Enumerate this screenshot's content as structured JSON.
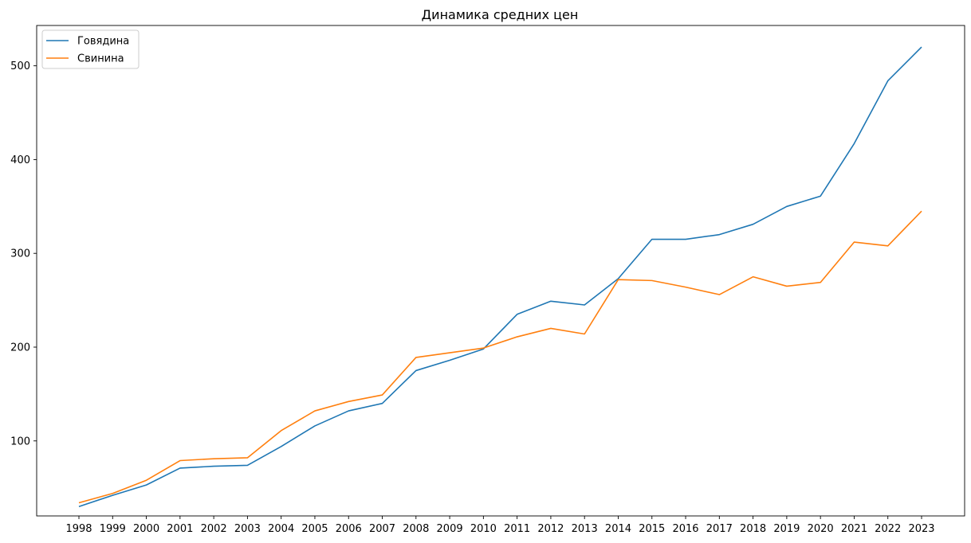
{
  "chart_data": {
    "type": "line",
    "title": "Динамика средних цен",
    "xlabel": "",
    "ylabel": "",
    "grid": false,
    "legend_position": "top-left",
    "x": [
      "1998",
      "1999",
      "2000",
      "2001",
      "2002",
      "2003",
      "2004",
      "2005",
      "2006",
      "2007",
      "2008",
      "2009",
      "2010",
      "2011",
      "2012",
      "2013",
      "2014",
      "2015",
      "2016",
      "2017",
      "2018",
      "2019",
      "2020",
      "2021",
      "2022",
      "2023"
    ],
    "ylim": [
      20,
      543
    ],
    "yticks": [
      100,
      200,
      300,
      400,
      500
    ],
    "series": [
      {
        "name": "Говядина",
        "color": "#1f77b4",
        "values": [
          30,
          42,
          53,
          71,
          73,
          74,
          94,
          116,
          132,
          140,
          175,
          186,
          198,
          235,
          249,
          245,
          273,
          315,
          315,
          320,
          331,
          350,
          361,
          417,
          484,
          520
        ]
      },
      {
        "name": "Свинина",
        "color": "#ff7f0e",
        "values": [
          34,
          44,
          58,
          79,
          81,
          82,
          111,
          132,
          142,
          149,
          189,
          194,
          199,
          211,
          220,
          214,
          272,
          271,
          264,
          256,
          275,
          265,
          269,
          312,
          308,
          345
        ]
      }
    ]
  }
}
